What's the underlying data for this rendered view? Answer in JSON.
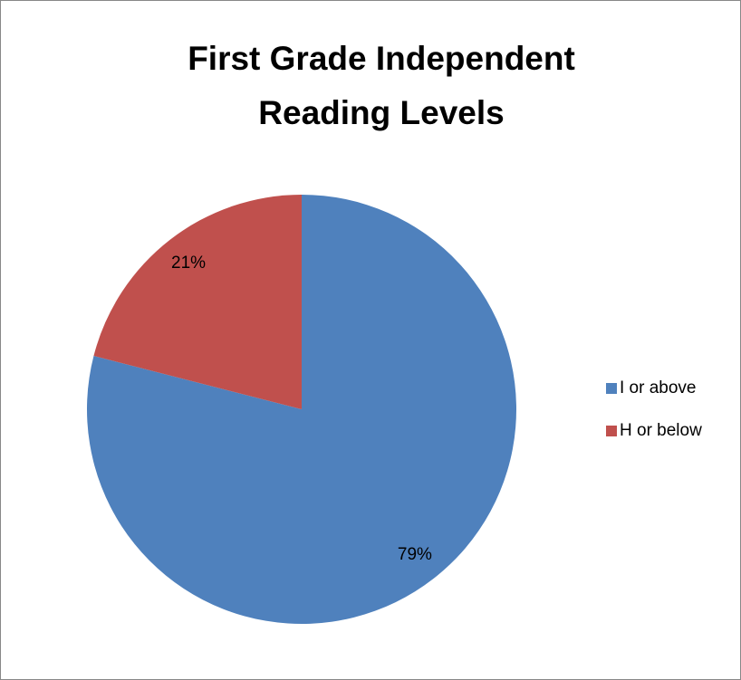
{
  "chart_data": {
    "type": "pie",
    "title": "First Grade Independent Reading Levels",
    "categories": [
      "I or above",
      "H or below"
    ],
    "values": [
      79,
      21
    ],
    "value_labels": [
      "79%",
      "21%"
    ],
    "colors": [
      "#4f81bd",
      "#c0504d"
    ],
    "legend": "right"
  }
}
